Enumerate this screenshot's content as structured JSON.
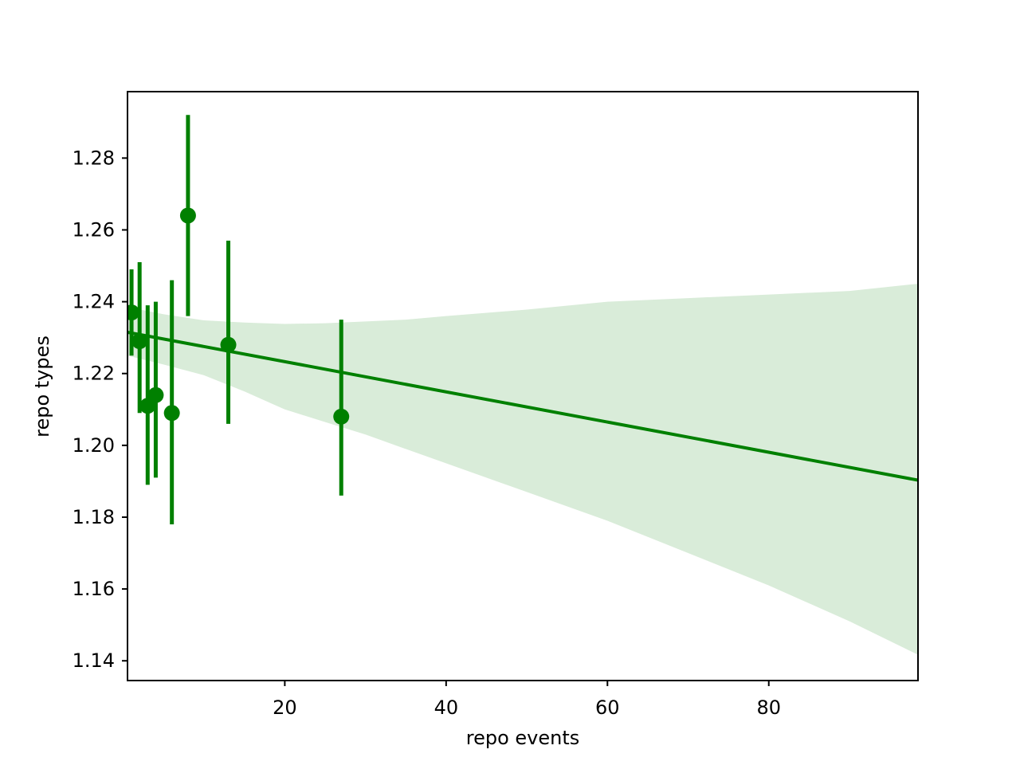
{
  "chart_data": {
    "type": "scatter",
    "title": "",
    "xlabel": "repo events",
    "ylabel": "repo types",
    "xlim": [
      0.5,
      98.5
    ],
    "ylim": [
      1.1345,
      1.2985
    ],
    "xticks": [
      20,
      40,
      60,
      80
    ],
    "xtick_labels": [
      "20",
      "40",
      "60",
      "80"
    ],
    "yticks": [
      1.14,
      1.16,
      1.18,
      1.2,
      1.22,
      1.24,
      1.26,
      1.28
    ],
    "ytick_labels": [
      "1.14",
      "1.16",
      "1.18",
      "1.20",
      "1.22",
      "1.24",
      "1.26",
      "1.28"
    ],
    "grid": false,
    "legend": "none",
    "colors": {
      "points": "#008000",
      "fit_line": "#008000",
      "confidence_band": "#d9ecd9",
      "axes": "#000000",
      "background": "#ffffff"
    },
    "points": [
      {
        "x": 1,
        "y": 1.237,
        "err_low": 1.225,
        "err_high": 1.249
      },
      {
        "x": 2,
        "y": 1.229,
        "err_low": 1.209,
        "err_high": 1.251
      },
      {
        "x": 3,
        "y": 1.211,
        "err_low": 1.189,
        "err_high": 1.239
      },
      {
        "x": 4,
        "y": 1.214,
        "err_low": 1.191,
        "err_high": 1.24
      },
      {
        "x": 6,
        "y": 1.209,
        "err_low": 1.178,
        "err_high": 1.246
      },
      {
        "x": 8,
        "y": 1.264,
        "err_low": 1.236,
        "err_high": 1.292
      },
      {
        "x": 13,
        "y": 1.228,
        "err_low": 1.206,
        "err_high": 1.257
      },
      {
        "x": 27,
        "y": 1.208,
        "err_low": 1.186,
        "err_high": 1.235
      }
    ],
    "fit_line": {
      "x": [
        0.5,
        98.5
      ],
      "y": [
        1.2315,
        1.1903
      ]
    },
    "confidence_band": {
      "x": [
        0.5,
        5,
        10,
        15,
        20,
        25,
        30,
        35,
        40,
        50,
        60,
        70,
        80,
        90,
        98.5
      ],
      "upper": [
        1.2385,
        1.2365,
        1.2348,
        1.2342,
        1.2338,
        1.234,
        1.2345,
        1.235,
        1.236,
        1.2378,
        1.24,
        1.241,
        1.242,
        1.243,
        1.245
      ],
      "lower": [
        1.225,
        1.2225,
        1.2195,
        1.215,
        1.21,
        1.2065,
        1.203,
        1.199,
        1.195,
        1.187,
        1.179,
        1.17,
        1.161,
        1.151,
        1.1417
      ]
    }
  }
}
